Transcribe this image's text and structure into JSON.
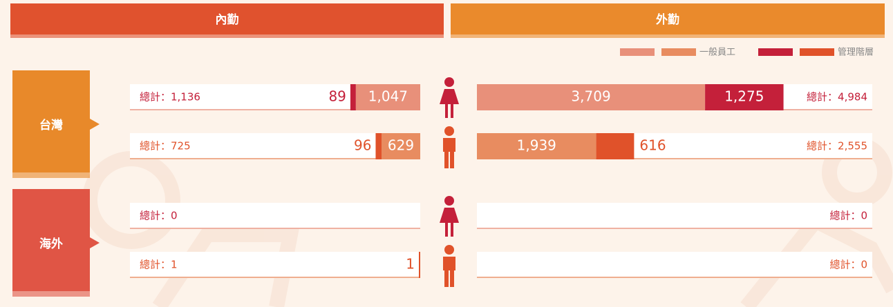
{
  "columns": [
    {
      "name": "內勤",
      "color": "#e0522e"
    },
    {
      "name": "外勤",
      "color": "#ea8a2c"
    }
  ],
  "legend": [
    {
      "label": "一般員工",
      "colors": [
        "#e8907a",
        "#e88c60"
      ]
    },
    {
      "label": "管理階層",
      "colors": [
        "#c4203a",
        "#e0522a"
      ]
    }
  ],
  "regions": [
    {
      "name": "台灣",
      "color": "#e8892a",
      "rows": [
        {
          "icon": "female",
          "inner": {
            "total": "總計：1,136",
            "general": {
              "value": 1047,
              "label": "1,047"
            },
            "management": {
              "value": 89,
              "label": "89"
            }
          },
          "outer": {
            "total": "總計：4,984",
            "general": {
              "value": 3709,
              "label": "3,709"
            },
            "management": {
              "value": 1275,
              "label": "1,275"
            }
          }
        },
        {
          "icon": "male",
          "inner": {
            "total": "總計：725",
            "general": {
              "value": 629,
              "label": "629"
            },
            "management": {
              "value": 96,
              "label": "96"
            }
          },
          "outer": {
            "total": "總計：2,555",
            "general": {
              "value": 1939,
              "label": "1,939"
            },
            "management": {
              "value": 616,
              "label": "616"
            }
          }
        }
      ]
    },
    {
      "name": "海外",
      "color": "#e05545",
      "rows": [
        {
          "icon": "female",
          "inner": {
            "total": "總計：0"
          },
          "outer": {
            "total": "總計：0"
          }
        },
        {
          "icon": "male",
          "inner": {
            "total": "總計：1",
            "management": {
              "value": 1,
              "label": "1"
            }
          },
          "outer": {
            "total": "總計：0"
          }
        }
      ]
    }
  ]
}
